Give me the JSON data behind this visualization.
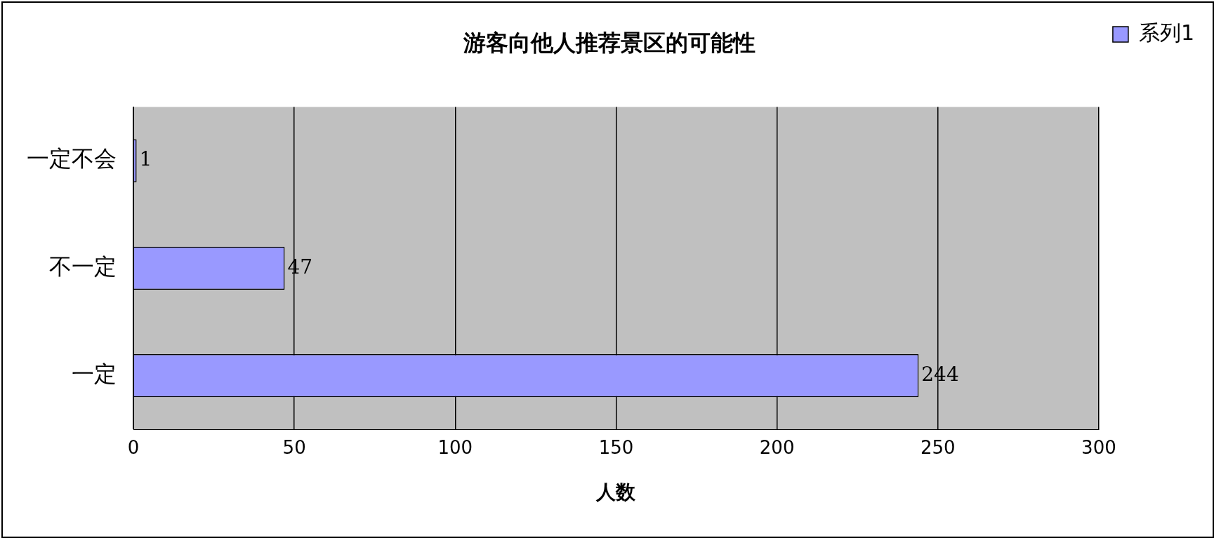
{
  "chart_data": {
    "type": "bar",
    "orientation": "horizontal",
    "title": "游客向他人推荐景区的可能性",
    "xlabel": "人数",
    "categories": [
      "一定不会",
      "不一定",
      "一定"
    ],
    "series": [
      {
        "name": "系列1",
        "color": "#9999ff",
        "values": [
          1,
          47,
          244
        ]
      }
    ],
    "xlim": [
      0,
      300
    ],
    "xticks": [
      0,
      50,
      100,
      150,
      200,
      250,
      300
    ],
    "grid": "x",
    "legend": "top right",
    "data_labels": true
  }
}
